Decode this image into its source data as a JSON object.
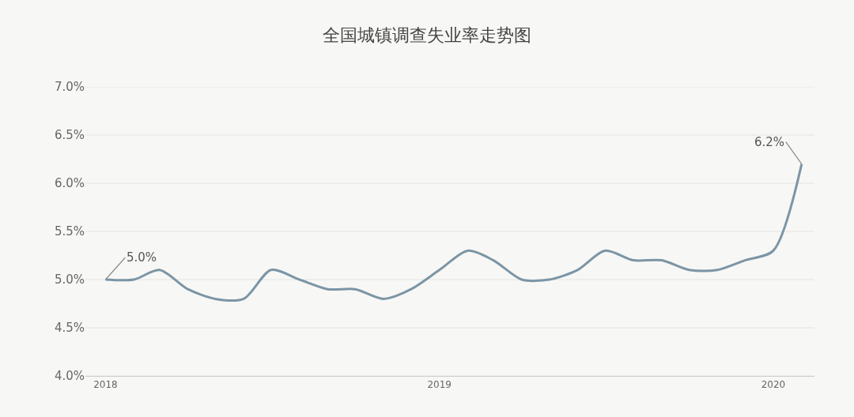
{
  "chart_data": {
    "type": "line",
    "title": "全国城镇调查失业率走势图",
    "x": [
      "2018-01",
      "2018-02",
      "2018-03",
      "2018-04",
      "2018-05",
      "2018-06",
      "2018-07",
      "2018-08",
      "2018-09",
      "2018-10",
      "2018-11",
      "2018-12",
      "2019-01",
      "2019-02",
      "2019-03",
      "2019-04",
      "2019-05",
      "2019-06",
      "2019-07",
      "2019-08",
      "2019-09",
      "2019-10",
      "2019-11",
      "2019-12",
      "2020-01",
      "2020-02"
    ],
    "series": [
      {
        "color": "#7b95a5",
        "values": [
          5.0,
          5.0,
          5.1,
          4.9,
          4.8,
          4.8,
          5.1,
          5.0,
          4.9,
          4.9,
          4.8,
          4.9,
          5.1,
          5.3,
          5.2,
          5.0,
          5.0,
          5.1,
          5.3,
          5.2,
          5.2,
          5.1,
          5.1,
          5.2,
          5.3,
          6.2
        ]
      }
    ],
    "xlim": [
      "2017-12-10",
      "2020-02-15"
    ],
    "xticks": [
      {
        "value": "2018-01",
        "label": "2018"
      },
      {
        "value": "2019-01",
        "label": "2019"
      },
      {
        "value": "2020-01",
        "label": "2020"
      }
    ],
    "ylim": [
      4,
      7
    ],
    "yticks": [
      {
        "value": 4,
        "label": "4.0%"
      },
      {
        "value": 4.5,
        "label": "4.5%"
      },
      {
        "value": 5,
        "label": "5.0%"
      },
      {
        "value": 5.5,
        "label": "5.5%"
      },
      {
        "value": 6,
        "label": "6.0%"
      },
      {
        "value": 6.5,
        "label": "6.5%"
      },
      {
        "value": 7,
        "label": "7.0%"
      }
    ],
    "annotations": [
      {
        "text": "5.0%",
        "x": "2018-01",
        "y": 5.0
      },
      {
        "text": "6.2%",
        "x": "2020-02",
        "y": 6.2
      }
    ],
    "grid": "y",
    "marker": "none",
    "line_style": "solid"
  }
}
